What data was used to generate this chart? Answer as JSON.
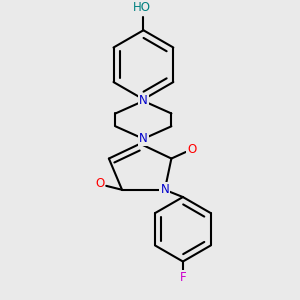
{
  "bg_color": "#eaeaea",
  "bond_color": "#000000",
  "bond_width": 1.5,
  "atom_colors": {
    "N": "#0000cc",
    "O": "#ff0000",
    "F": "#cc00cc",
    "H": "#008080",
    "C": "#000000"
  },
  "font_size": 8.5,
  "ho_label": "HO",
  "f_label": "F",
  "n_label": "N",
  "o_label": "O"
}
